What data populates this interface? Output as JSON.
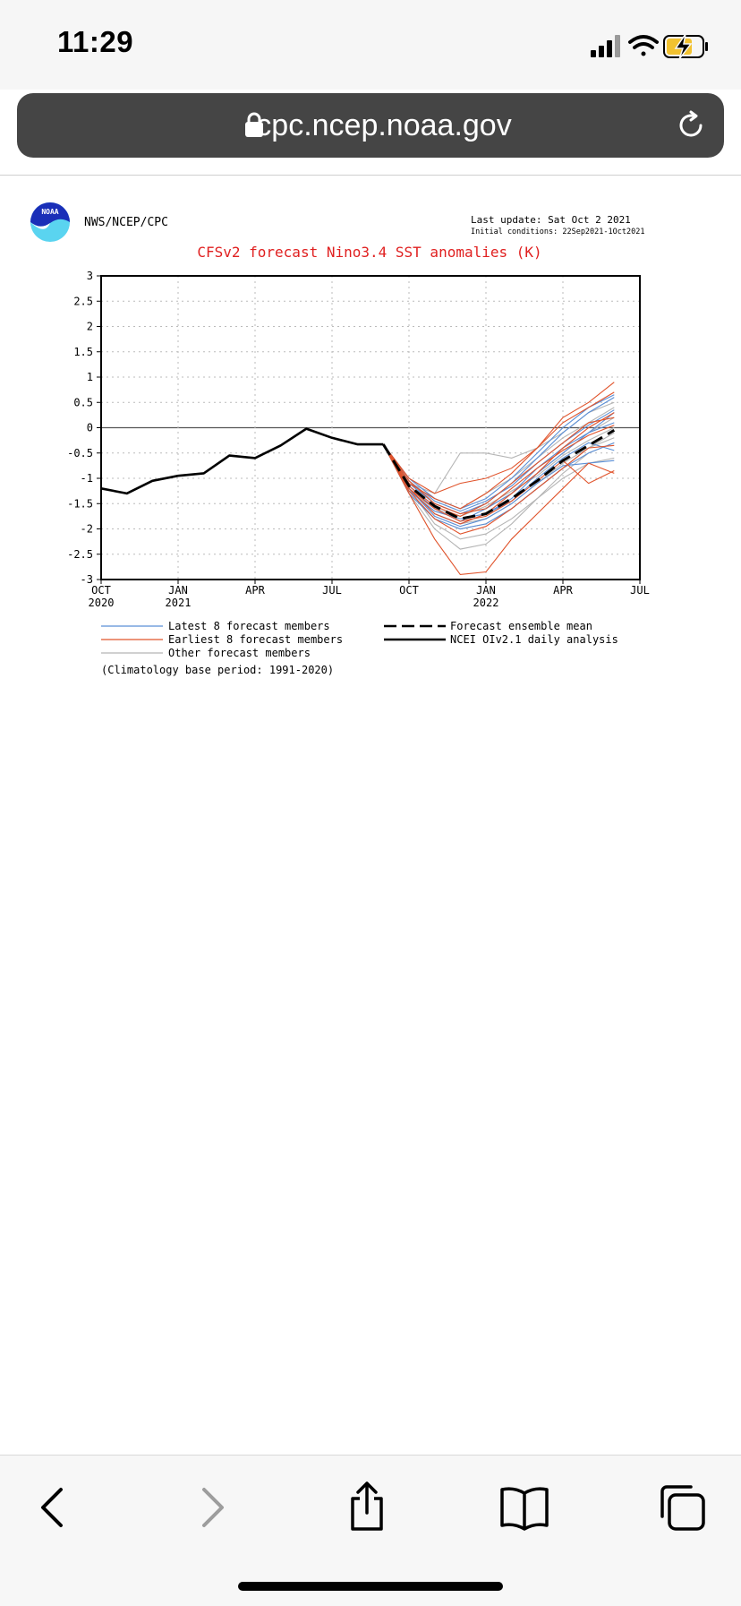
{
  "status_bar": {
    "time": "11:29"
  },
  "browser": {
    "url": "cpc.ncep.noaa.gov"
  },
  "header": {
    "logo_text": "NOAA",
    "org": "NWS/NCEP/CPC",
    "last_update": "Last update: Sat Oct 2 2021",
    "initial_conditions": "Initial conditions: 22Sep2021-1Oct2021"
  },
  "legend": {
    "latest": "Latest 8 forecast members",
    "earliest": "Earliest 8 forecast members",
    "other": "Other forecast members",
    "mean": "Forecast ensemble mean",
    "analysis": "NCEI OIv2.1 daily analysis",
    "climatology": "(Climatology base period: 1991-2020)"
  },
  "chart_data": {
    "type": "line",
    "title": "CFSv2 forecast Nino3.4 SST anomalies (K)",
    "ylim": [
      -3,
      3
    ],
    "yticks": [
      "3",
      "2.5",
      "2",
      "1.5",
      "1",
      "0.5",
      "0",
      "-0.5",
      "-1",
      "-1.5",
      "-2",
      "-2.5",
      "-3"
    ],
    "x_range_months": [
      0,
      21
    ],
    "x_ticks": [
      {
        "m": 0,
        "label": "OCT",
        "year": "2020"
      },
      {
        "m": 3,
        "label": "JAN",
        "year": "2021"
      },
      {
        "m": 6,
        "label": "APR",
        "year": ""
      },
      {
        "m": 9,
        "label": "JUL",
        "year": ""
      },
      {
        "m": 12,
        "label": "OCT",
        "year": ""
      },
      {
        "m": 15,
        "label": "JAN",
        "year": "2022"
      },
      {
        "m": 18,
        "label": "APR",
        "year": ""
      },
      {
        "m": 21,
        "label": "JUL",
        "year": ""
      }
    ],
    "grid": true,
    "colors": {
      "latest": "#5b8fd6",
      "earliest": "#e0532b",
      "other": "#b5b5b5",
      "mean": "#000000",
      "analysis": "#000000",
      "title": "#e02020"
    },
    "analysis": [
      [
        0,
        -1.2
      ],
      [
        1,
        -1.3
      ],
      [
        2,
        -1.05
      ],
      [
        3,
        -0.95
      ],
      [
        4,
        -0.9
      ],
      [
        5,
        -0.55
      ],
      [
        6,
        -0.6
      ],
      [
        7,
        -0.35
      ],
      [
        8,
        -0.02
      ],
      [
        9,
        -0.2
      ],
      [
        10,
        -0.33
      ],
      [
        11,
        -0.33
      ]
    ],
    "mean": [
      [
        11,
        -0.33
      ],
      [
        12,
        -1.15
      ],
      [
        13,
        -1.55
      ],
      [
        14,
        -1.8
      ],
      [
        15,
        -1.7
      ],
      [
        16,
        -1.4
      ],
      [
        17,
        -1.05
      ],
      [
        18,
        -0.65
      ],
      [
        19,
        -0.35
      ],
      [
        20,
        -0.05
      ]
    ],
    "members": {
      "other": [
        [
          [
            11,
            -0.33
          ],
          [
            12,
            -1.3
          ],
          [
            13,
            -1.8
          ],
          [
            14,
            -2.0
          ],
          [
            15,
            -1.9
          ],
          [
            16,
            -1.6
          ],
          [
            17,
            -1.2
          ],
          [
            18,
            -0.8
          ],
          [
            19,
            -0.4
          ],
          [
            20,
            -0.1
          ]
        ],
        [
          [
            11,
            -0.33
          ],
          [
            12,
            -1.1
          ],
          [
            13,
            -1.5
          ],
          [
            14,
            -1.7
          ],
          [
            15,
            -1.6
          ],
          [
            16,
            -1.3
          ],
          [
            17,
            -0.9
          ],
          [
            18,
            -0.5
          ],
          [
            19,
            -0.1
          ],
          [
            20,
            0.2
          ]
        ],
        [
          [
            11,
            -0.33
          ],
          [
            12,
            -1.2
          ],
          [
            13,
            -1.9
          ],
          [
            14,
            -2.2
          ],
          [
            15,
            -2.1
          ],
          [
            16,
            -1.8
          ],
          [
            17,
            -1.4
          ],
          [
            18,
            -0.9
          ],
          [
            19,
            -0.5
          ],
          [
            20,
            -0.3
          ]
        ],
        [
          [
            11,
            -0.33
          ],
          [
            12,
            -1.0
          ],
          [
            13,
            -1.4
          ],
          [
            14,
            -1.6
          ],
          [
            15,
            -1.3
          ],
          [
            16,
            -1.0
          ],
          [
            17,
            -0.6
          ],
          [
            18,
            -0.2
          ],
          [
            19,
            0.1
          ],
          [
            20,
            0.4
          ]
        ],
        [
          [
            11,
            -0.33
          ],
          [
            12,
            -1.3
          ],
          [
            13,
            -2.0
          ],
          [
            14,
            -2.4
          ],
          [
            15,
            -2.3
          ],
          [
            16,
            -1.9
          ],
          [
            17,
            -1.4
          ],
          [
            18,
            -1.0
          ],
          [
            19,
            -0.7
          ],
          [
            20,
            -0.6
          ]
        ],
        [
          [
            11,
            -0.33
          ],
          [
            12,
            -1.1
          ],
          [
            13,
            -1.3
          ],
          [
            14,
            -0.5
          ],
          [
            15,
            -0.5
          ],
          [
            16,
            -0.6
          ],
          [
            17,
            -0.4
          ],
          [
            18,
            -0.1
          ],
          [
            19,
            0.3
          ],
          [
            20,
            0.5
          ]
        ],
        [
          [
            11,
            -0.33
          ],
          [
            12,
            -1.2
          ],
          [
            13,
            -1.7
          ],
          [
            14,
            -1.9
          ],
          [
            15,
            -1.8
          ],
          [
            16,
            -1.5
          ],
          [
            17,
            -1.1
          ],
          [
            18,
            -0.7
          ],
          [
            19,
            -0.4
          ],
          [
            20,
            -0.2
          ]
        ],
        [
          [
            11,
            -0.33
          ],
          [
            12,
            -1.25
          ],
          [
            13,
            -1.6
          ],
          [
            14,
            -1.75
          ],
          [
            15,
            -1.55
          ],
          [
            16,
            -1.25
          ],
          [
            17,
            -0.95
          ],
          [
            18,
            -0.55
          ],
          [
            19,
            -0.25
          ],
          [
            20,
            0.0
          ]
        ]
      ],
      "latest": [
        [
          [
            11,
            -0.33
          ],
          [
            12,
            -1.1
          ],
          [
            13,
            -1.5
          ],
          [
            14,
            -1.7
          ],
          [
            15,
            -1.5
          ],
          [
            16,
            -1.1
          ],
          [
            17,
            -0.6
          ],
          [
            18,
            -0.1
          ],
          [
            19,
            0.3
          ],
          [
            20,
            0.6
          ]
        ],
        [
          [
            11,
            -0.33
          ],
          [
            12,
            -1.2
          ],
          [
            13,
            -1.7
          ],
          [
            14,
            -1.9
          ],
          [
            15,
            -1.7
          ],
          [
            16,
            -1.4
          ],
          [
            17,
            -0.9
          ],
          [
            18,
            -0.5
          ],
          [
            19,
            -0.1
          ],
          [
            20,
            0.3
          ]
        ],
        [
          [
            11,
            -0.33
          ],
          [
            12,
            -1.0
          ],
          [
            13,
            -1.4
          ],
          [
            14,
            -1.6
          ],
          [
            15,
            -1.4
          ],
          [
            16,
            -1.0
          ],
          [
            17,
            -0.5
          ],
          [
            18,
            0.0
          ],
          [
            19,
            0.4
          ],
          [
            20,
            0.65
          ]
        ],
        [
          [
            11,
            -0.33
          ],
          [
            12,
            -1.3
          ],
          [
            13,
            -1.8
          ],
          [
            14,
            -2.0
          ],
          [
            15,
            -1.9
          ],
          [
            16,
            -1.6
          ],
          [
            17,
            -1.2
          ],
          [
            18,
            -0.8
          ],
          [
            19,
            -0.5
          ],
          [
            20,
            -0.3
          ]
        ],
        [
          [
            11,
            -0.33
          ],
          [
            12,
            -1.15
          ],
          [
            13,
            -1.6
          ],
          [
            14,
            -1.85
          ],
          [
            15,
            -1.6
          ],
          [
            16,
            -1.3
          ],
          [
            17,
            -0.8
          ],
          [
            18,
            -0.4
          ],
          [
            19,
            -0.1
          ],
          [
            20,
            0.1
          ]
        ],
        [
          [
            11,
            -0.33
          ],
          [
            12,
            -1.25
          ],
          [
            13,
            -1.65
          ],
          [
            14,
            -1.8
          ],
          [
            15,
            -1.7
          ],
          [
            16,
            -1.45
          ],
          [
            17,
            -1.0
          ],
          [
            18,
            -0.6
          ],
          [
            19,
            -0.3
          ],
          [
            20,
            -0.45
          ]
        ],
        [
          [
            11,
            -0.33
          ],
          [
            12,
            -1.05
          ],
          [
            13,
            -1.45
          ],
          [
            14,
            -1.65
          ],
          [
            15,
            -1.45
          ],
          [
            16,
            -1.15
          ],
          [
            17,
            -0.7
          ],
          [
            18,
            -0.3
          ],
          [
            19,
            0.05
          ],
          [
            20,
            0.35
          ]
        ],
        [
          [
            11,
            -0.33
          ],
          [
            12,
            -1.2
          ],
          [
            13,
            -1.75
          ],
          [
            14,
            -1.95
          ],
          [
            15,
            -1.8
          ],
          [
            16,
            -1.5
          ],
          [
            17,
            -1.1
          ],
          [
            18,
            -0.75
          ],
          [
            19,
            -0.7
          ],
          [
            20,
            -0.65
          ]
        ]
      ],
      "earliest": [
        [
          [
            11,
            -0.33
          ],
          [
            12,
            -1.1
          ],
          [
            13,
            -1.4
          ],
          [
            14,
            -1.6
          ],
          [
            15,
            -1.3
          ],
          [
            16,
            -0.9
          ],
          [
            17,
            -0.4
          ],
          [
            18,
            0.2
          ],
          [
            19,
            0.5
          ],
          [
            20,
            0.9
          ]
        ],
        [
          [
            11,
            -0.33
          ],
          [
            12,
            -1.2
          ],
          [
            13,
            -1.7
          ],
          [
            14,
            -1.9
          ],
          [
            15,
            -1.7
          ],
          [
            16,
            -1.3
          ],
          [
            17,
            -0.9
          ],
          [
            18,
            -0.4
          ],
          [
            19,
            0.0
          ],
          [
            20,
            0.3
          ]
        ],
        [
          [
            11,
            -0.33
          ],
          [
            12,
            -1.3
          ],
          [
            13,
            -2.2
          ],
          [
            14,
            -2.9
          ],
          [
            15,
            -2.85
          ],
          [
            16,
            -2.2
          ],
          [
            17,
            -1.7
          ],
          [
            18,
            -1.2
          ],
          [
            19,
            -0.7
          ],
          [
            20,
            -0.9
          ]
        ],
        [
          [
            11,
            -0.33
          ],
          [
            12,
            -1.0
          ],
          [
            13,
            -1.3
          ],
          [
            14,
            -1.1
          ],
          [
            15,
            -1.0
          ],
          [
            16,
            -0.8
          ],
          [
            17,
            -0.4
          ],
          [
            18,
            0.1
          ],
          [
            19,
            0.4
          ],
          [
            20,
            0.7
          ]
        ],
        [
          [
            11,
            -0.33
          ],
          [
            12,
            -1.25
          ],
          [
            13,
            -1.8
          ],
          [
            14,
            -2.1
          ],
          [
            15,
            -1.95
          ],
          [
            16,
            -1.6
          ],
          [
            17,
            -1.2
          ],
          [
            18,
            -0.8
          ],
          [
            19,
            -0.4
          ],
          [
            20,
            -0.35
          ]
        ],
        [
          [
            11,
            -0.33
          ],
          [
            12,
            -1.15
          ],
          [
            13,
            -1.55
          ],
          [
            14,
            -1.75
          ],
          [
            15,
            -1.5
          ],
          [
            16,
            -1.1
          ],
          [
            17,
            -0.7
          ],
          [
            18,
            -0.3
          ],
          [
            19,
            0.1
          ],
          [
            20,
            0.2
          ]
        ],
        [
          [
            11,
            -0.33
          ],
          [
            12,
            -1.2
          ],
          [
            13,
            -1.6
          ],
          [
            14,
            -1.85
          ],
          [
            15,
            -1.75
          ],
          [
            16,
            -1.45
          ],
          [
            17,
            -1.05
          ],
          [
            18,
            -0.65
          ],
          [
            19,
            -1.1
          ],
          [
            20,
            -0.85
          ]
        ],
        [
          [
            11,
            -0.33
          ],
          [
            12,
            -1.05
          ],
          [
            13,
            -1.5
          ],
          [
            14,
            -1.7
          ],
          [
            15,
            -1.6
          ],
          [
            16,
            -1.2
          ],
          [
            17,
            -0.8
          ],
          [
            18,
            -0.45
          ],
          [
            19,
            -0.15
          ],
          [
            20,
            0.05
          ]
        ]
      ]
    }
  }
}
